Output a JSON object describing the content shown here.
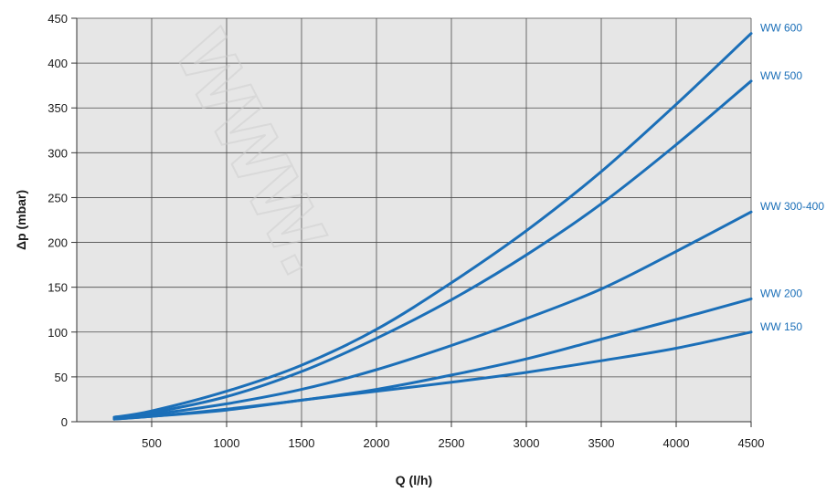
{
  "chart_data": {
    "type": "line",
    "title": "",
    "xlabel": "Q (l/h)",
    "ylabel": "Δp (mbar)",
    "xlim": [
      0,
      4500
    ],
    "ylim": [
      0,
      450
    ],
    "xticks": [
      500,
      1000,
      1500,
      2000,
      2500,
      3000,
      3500,
      4000,
      4500
    ],
    "yticks": [
      0,
      50,
      100,
      150,
      200,
      250,
      300,
      350,
      400,
      450
    ],
    "grid": true,
    "plot_background": "#e6e6e6",
    "line_color": "#1b6fb8",
    "series": [
      {
        "name": "WW 600",
        "x": [
          250,
          500,
          1000,
          1500,
          2000,
          2500,
          3000,
          3500,
          4000,
          4500
        ],
        "y": [
          5,
          12,
          34,
          63,
          103,
          155,
          213,
          279,
          354,
          433
        ]
      },
      {
        "name": "WW 500",
        "x": [
          250,
          500,
          1000,
          1500,
          2000,
          2500,
          3000,
          3500,
          4000,
          4500
        ],
        "y": [
          5,
          10,
          28,
          56,
          93,
          136,
          186,
          243,
          309,
          380
        ]
      },
      {
        "name": "WW 300-400",
        "x": [
          250,
          500,
          1000,
          1500,
          2000,
          2500,
          3000,
          3500,
          4000,
          4500
        ],
        "y": [
          4,
          8,
          20,
          36,
          58,
          85,
          115,
          148,
          190,
          234
        ]
      },
      {
        "name": "WW 200",
        "x": [
          250,
          500,
          1000,
          1500,
          2000,
          2500,
          3000,
          3500,
          4000,
          4500
        ],
        "y": [
          3,
          6,
          14,
          24,
          36,
          52,
          70,
          92,
          114,
          137
        ]
      },
      {
        "name": "WW 150",
        "x": [
          250,
          500,
          1000,
          1500,
          2000,
          2500,
          3000,
          3500,
          4000,
          4500
        ],
        "y": [
          3,
          6,
          13,
          24,
          34,
          44,
          55,
          68,
          82,
          100
        ]
      }
    ]
  },
  "watermark": "www."
}
